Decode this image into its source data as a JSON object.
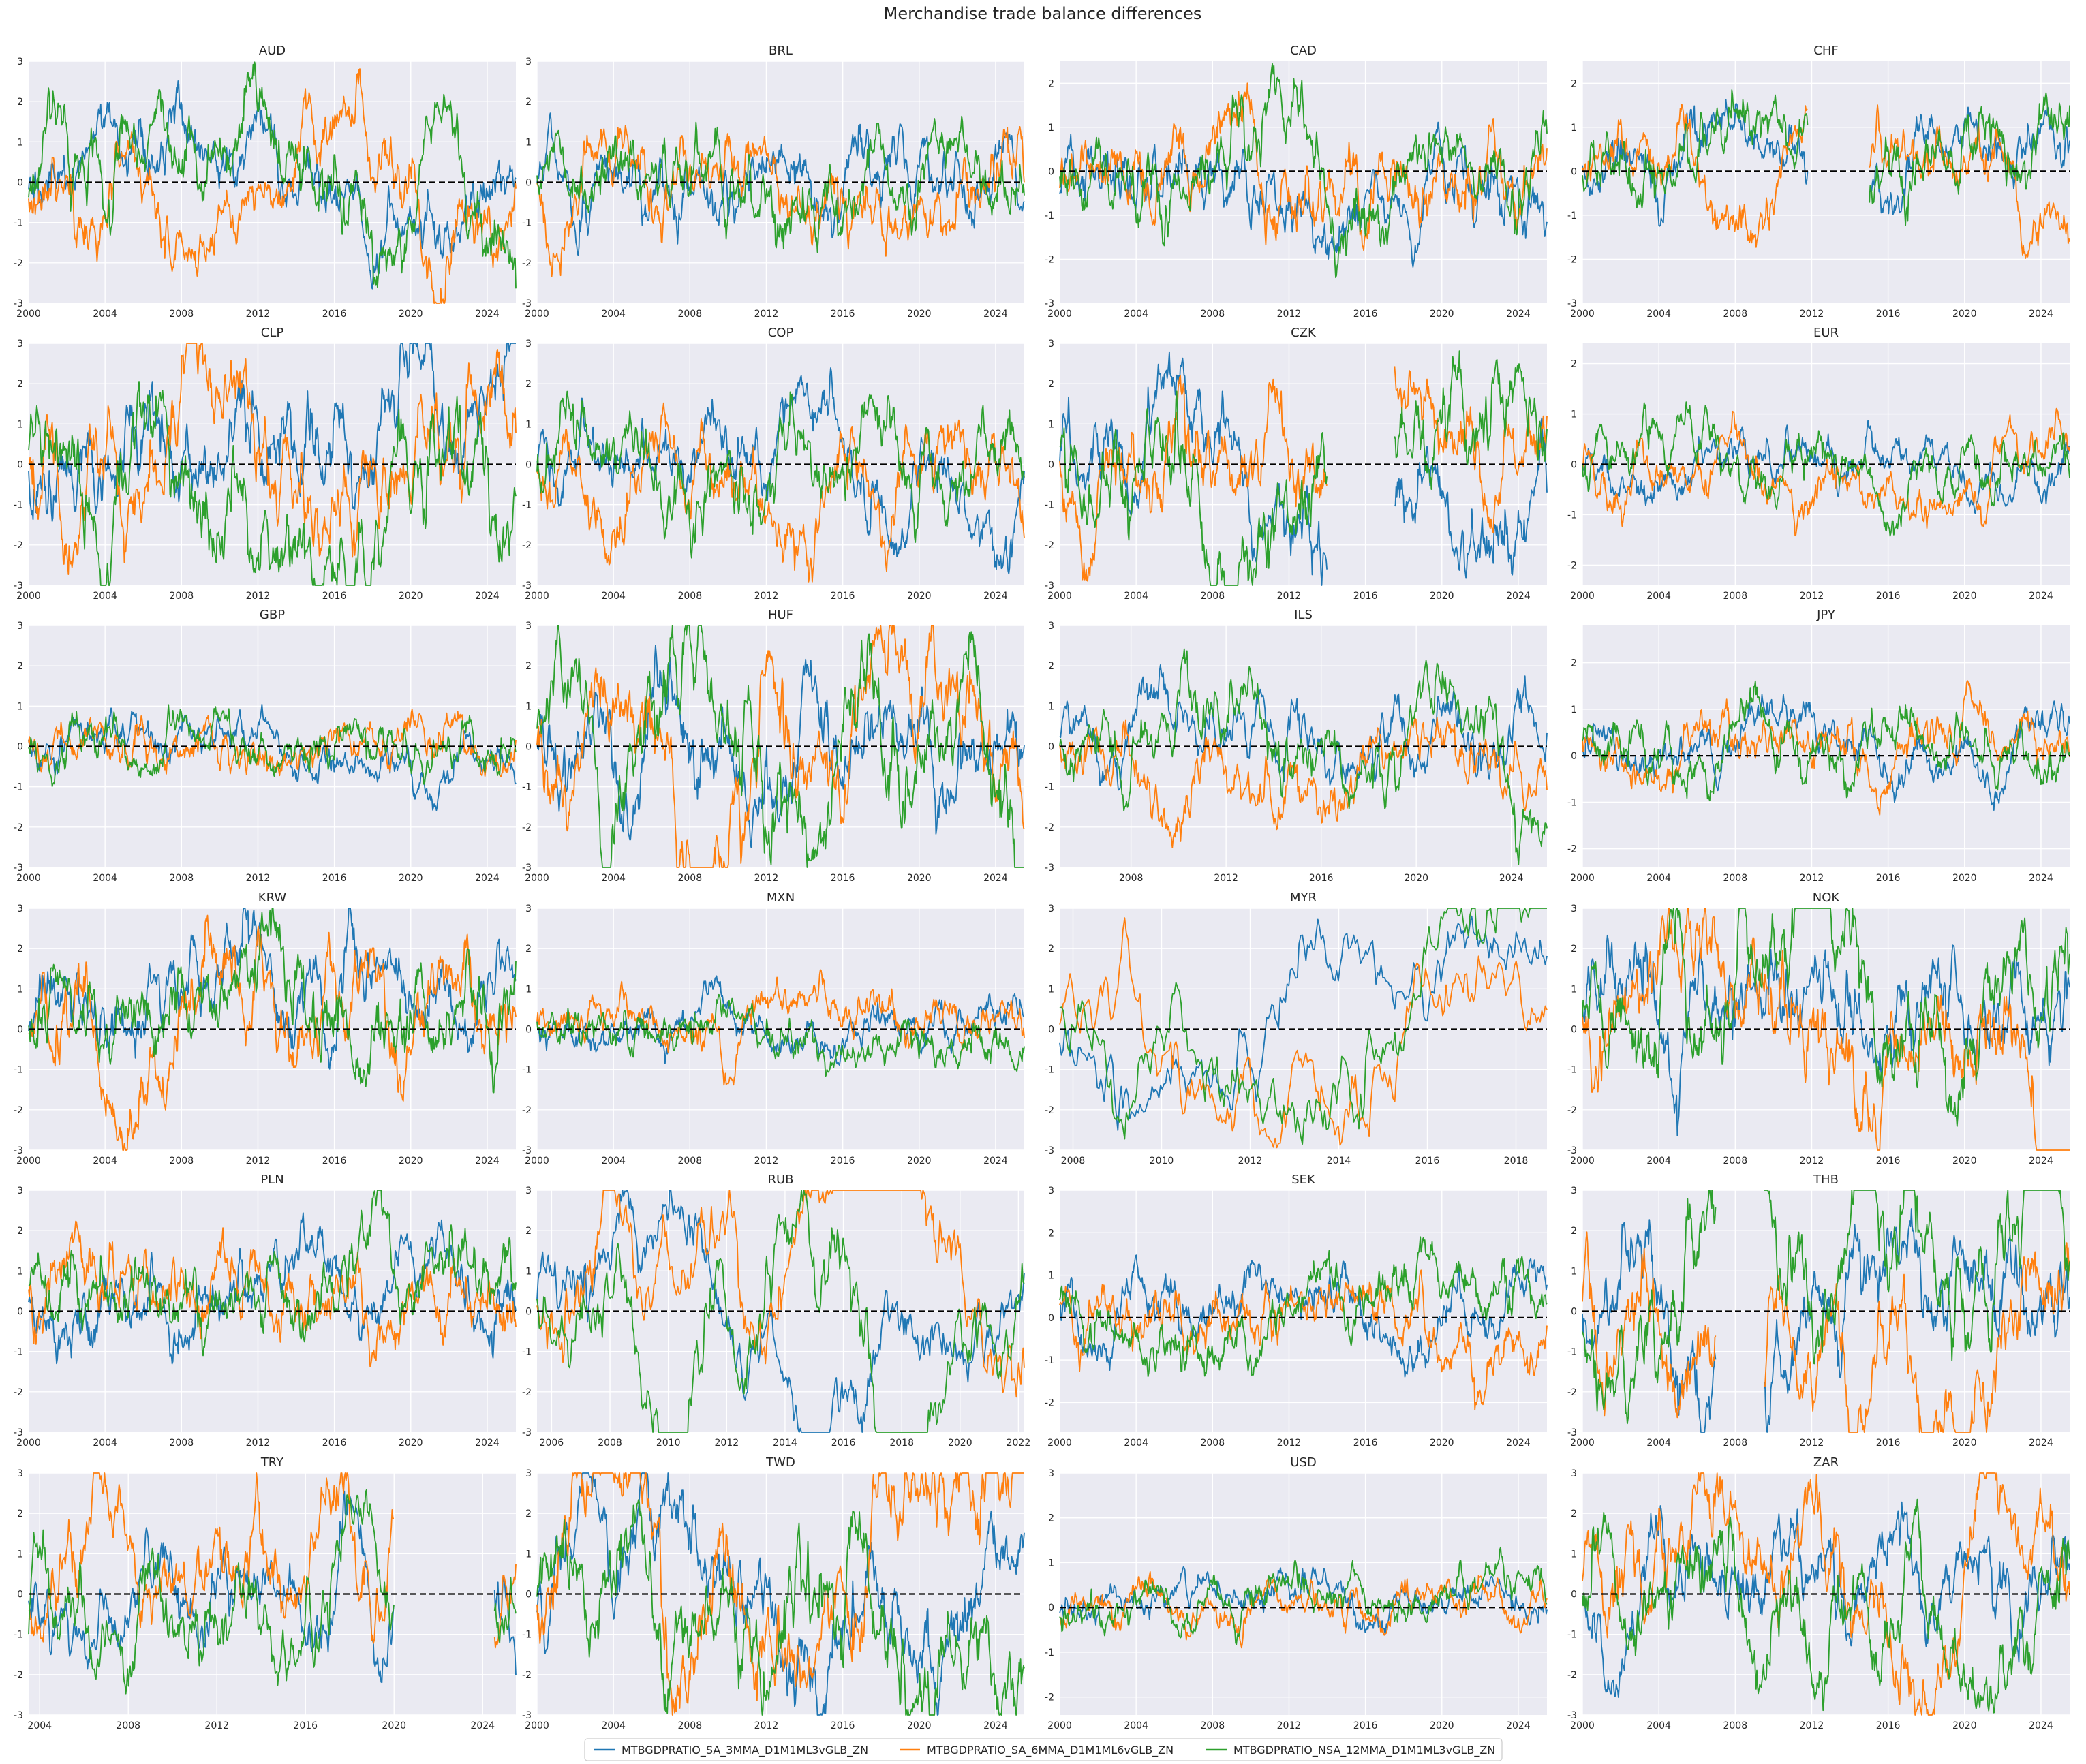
{
  "suptitle": "Merchandise trade balance differences",
  "colors": {
    "background": "#eaeaf2",
    "grid": "#ffffff",
    "zero_line": "#000000",
    "series": [
      "#1f77b4",
      "#ff7f0e",
      "#2ca02c"
    ]
  },
  "legend": {
    "placement": "bottom-center",
    "items": [
      "MTBGDPRATIO_SA_3MMA_D1M1ML3vGLB_ZN",
      "MTBGDPRATIO_SA_6MMA_D1M1ML6vGLB_ZN",
      "MTBGDPRATIO_NSA_12MMA_D1M1ML3vGLB_ZN"
    ]
  },
  "chart_data": [
    {
      "type": "line",
      "title": "AUD",
      "x_range": [
        2000,
        2025.5
      ],
      "xticks": [
        2000,
        2004,
        2008,
        2012,
        2016,
        2020,
        2024
      ],
      "ylim": [
        -3,
        3
      ],
      "yticks": [
        -3,
        -2,
        -1,
        0,
        1,
        2,
        3
      ],
      "zero_line": true,
      "style": {
        "vol": 0.75,
        "persist": 0.97
      },
      "gaps": []
    },
    {
      "type": "line",
      "title": "BRL",
      "x_range": [
        2000,
        2025.5
      ],
      "xticks": [
        2000,
        2004,
        2008,
        2012,
        2016,
        2020,
        2024
      ],
      "ylim": [
        -3,
        3
      ],
      "yticks": [
        -3,
        -2,
        -1,
        0,
        1,
        2,
        3
      ],
      "zero_line": true,
      "style": {
        "vol": 0.7,
        "persist": 0.96
      },
      "gaps": []
    },
    {
      "type": "line",
      "title": "CAD",
      "x_range": [
        2000,
        2025.5
      ],
      "xticks": [
        2000,
        2004,
        2008,
        2012,
        2016,
        2020,
        2024
      ],
      "ylim": [
        -3,
        2.5
      ],
      "yticks": [
        -3,
        -2,
        -1,
        0,
        1,
        2
      ],
      "zero_line": true,
      "style": {
        "vol": 0.7,
        "persist": 0.95
      },
      "gaps": []
    },
    {
      "type": "line",
      "title": "CHF",
      "x_range": [
        2000,
        2025.5
      ],
      "xticks": [
        2000,
        2004,
        2008,
        2012,
        2016,
        2020,
        2024
      ],
      "ylim": [
        -3,
        2.5
      ],
      "yticks": [
        -3,
        -2,
        -1,
        0,
        1,
        2
      ],
      "zero_line": true,
      "style": {
        "vol": 0.6,
        "persist": 0.94
      },
      "gaps": [
        [
          2011.8,
          2015.0
        ]
      ]
    },
    {
      "type": "line",
      "title": "CLP",
      "x_range": [
        2000,
        2025.5
      ],
      "xticks": [
        2000,
        2004,
        2008,
        2012,
        2016,
        2020,
        2024
      ],
      "ylim": [
        -3,
        3
      ],
      "yticks": [
        -3,
        -2,
        -1,
        0,
        1,
        2,
        3
      ],
      "zero_line": true,
      "style": {
        "vol": 1.0,
        "persist": 0.985
      },
      "gaps": []
    },
    {
      "type": "line",
      "title": "COP",
      "x_range": [
        2000,
        2025.5
      ],
      "xticks": [
        2000,
        2004,
        2008,
        2012,
        2016,
        2020,
        2024
      ],
      "ylim": [
        -3,
        3
      ],
      "yticks": [
        -3,
        -2,
        -1,
        0,
        1,
        2,
        3
      ],
      "zero_line": true,
      "style": {
        "vol": 0.75,
        "persist": 0.97
      },
      "gaps": []
    },
    {
      "type": "line",
      "title": "CZK",
      "x_range": [
        2000,
        2025.5
      ],
      "xticks": [
        2000,
        2004,
        2008,
        2012,
        2016,
        2020,
        2024
      ],
      "ylim": [
        -3,
        3
      ],
      "yticks": [
        -3,
        -2,
        -1,
        0,
        1,
        2,
        3
      ],
      "zero_line": true,
      "style": {
        "vol": 0.9,
        "persist": 0.97
      },
      "gaps": [
        [
          2014.0,
          2017.5
        ]
      ]
    },
    {
      "type": "line",
      "title": "EUR",
      "x_range": [
        2000,
        2025.5
      ],
      "xticks": [
        2000,
        2004,
        2008,
        2012,
        2016,
        2020,
        2024
      ],
      "ylim": [
        -2.4,
        2.4
      ],
      "yticks": [
        -2,
        -1,
        0,
        1,
        2
      ],
      "zero_line": true,
      "style": {
        "vol": 0.4,
        "persist": 0.93
      },
      "gaps": []
    },
    {
      "type": "line",
      "title": "GBP",
      "x_range": [
        2000,
        2025.5
      ],
      "xticks": [
        2000,
        2004,
        2008,
        2012,
        2016,
        2020,
        2024
      ],
      "ylim": [
        -3,
        3
      ],
      "yticks": [
        -3,
        -2,
        -1,
        0,
        1,
        2,
        3
      ],
      "zero_line": true,
      "style": {
        "vol": 0.45,
        "persist": 0.92
      },
      "gaps": []
    },
    {
      "type": "line",
      "title": "HUF",
      "x_range": [
        2000,
        2025.5
      ],
      "xticks": [
        2000,
        2004,
        2008,
        2012,
        2016,
        2020,
        2024
      ],
      "ylim": [
        -3,
        3
      ],
      "yticks": [
        -3,
        -2,
        -1,
        0,
        1,
        2,
        3
      ],
      "zero_line": true,
      "style": {
        "vol": 1.0,
        "persist": 0.98
      },
      "gaps": []
    },
    {
      "type": "line",
      "title": "ILS",
      "x_range": [
        2005,
        2025.5
      ],
      "xticks": [
        2008,
        2012,
        2016,
        2020,
        2024
      ],
      "ylim": [
        -3,
        3
      ],
      "yticks": [
        -3,
        -2,
        -1,
        0,
        1,
        2,
        3
      ],
      "zero_line": true,
      "style": {
        "vol": 0.75,
        "persist": 0.96
      },
      "gaps": []
    },
    {
      "type": "line",
      "title": "JPY",
      "x_range": [
        2000,
        2025.5
      ],
      "xticks": [
        2000,
        2004,
        2008,
        2012,
        2016,
        2020,
        2024
      ],
      "ylim": [
        -2.4,
        2.8
      ],
      "yticks": [
        -2,
        -1,
        0,
        1,
        2
      ],
      "zero_line": true,
      "style": {
        "vol": 0.45,
        "persist": 0.93
      },
      "gaps": []
    },
    {
      "type": "line",
      "title": "KRW",
      "x_range": [
        2000,
        2025.5
      ],
      "xticks": [
        2000,
        2004,
        2008,
        2012,
        2016,
        2020,
        2024
      ],
      "ylim": [
        -3,
        3
      ],
      "yticks": [
        -3,
        -2,
        -1,
        0,
        1,
        2,
        3
      ],
      "zero_line": true,
      "style": {
        "vol": 0.85,
        "persist": 0.97
      },
      "gaps": []
    },
    {
      "type": "line",
      "title": "MXN",
      "x_range": [
        2000,
        2025.5
      ],
      "xticks": [
        2000,
        2004,
        2008,
        2012,
        2016,
        2020,
        2024
      ],
      "ylim": [
        -3,
        3
      ],
      "yticks": [
        -3,
        -2,
        -1,
        0,
        1,
        2,
        3
      ],
      "zero_line": true,
      "style": {
        "vol": 0.45,
        "persist": 0.93
      },
      "gaps": []
    },
    {
      "type": "line",
      "title": "MYR",
      "x_range": [
        2007.7,
        2018.7
      ],
      "xticks": [
        2008,
        2010,
        2012,
        2014,
        2016,
        2018
      ],
      "ylim": [
        -3,
        3
      ],
      "yticks": [
        -3,
        -2,
        -1,
        0,
        1,
        2,
        3
      ],
      "zero_line": true,
      "style": {
        "vol": 1.0,
        "persist": 0.985
      },
      "gaps": []
    },
    {
      "type": "line",
      "title": "NOK",
      "x_range": [
        2000,
        2025.5
      ],
      "xticks": [
        2000,
        2004,
        2008,
        2012,
        2016,
        2020,
        2024
      ],
      "ylim": [
        -3,
        3
      ],
      "yticks": [
        -3,
        -2,
        -1,
        0,
        1,
        2,
        3
      ],
      "zero_line": true,
      "style": {
        "vol": 1.0,
        "persist": 0.985
      },
      "gaps": []
    },
    {
      "type": "line",
      "title": "PLN",
      "x_range": [
        2000,
        2025.5
      ],
      "xticks": [
        2000,
        2004,
        2008,
        2012,
        2016,
        2020,
        2024
      ],
      "ylim": [
        -3,
        3
      ],
      "yticks": [
        -3,
        -2,
        -1,
        0,
        1,
        2,
        3
      ],
      "zero_line": true,
      "style": {
        "vol": 0.7,
        "persist": 0.95
      },
      "gaps": []
    },
    {
      "type": "line",
      "title": "RUB",
      "x_range": [
        2005.5,
        2022.2
      ],
      "xticks": [
        2006,
        2008,
        2010,
        2012,
        2014,
        2016,
        2018,
        2020,
        2022
      ],
      "ylim": [
        -3,
        3
      ],
      "yticks": [
        -3,
        -2,
        -1,
        0,
        1,
        2,
        3
      ],
      "zero_line": true,
      "style": {
        "vol": 1.0,
        "persist": 0.985
      },
      "gaps": []
    },
    {
      "type": "line",
      "title": "SEK",
      "x_range": [
        2000,
        2025.5
      ],
      "xticks": [
        2000,
        2004,
        2008,
        2012,
        2016,
        2020,
        2024
      ],
      "ylim": [
        -2.7,
        3
      ],
      "yticks": [
        -2,
        -1,
        0,
        1,
        2,
        3
      ],
      "zero_line": true,
      "style": {
        "vol": 0.55,
        "persist": 0.93
      },
      "gaps": []
    },
    {
      "type": "line",
      "title": "THB",
      "x_range": [
        2000,
        2025.5
      ],
      "xticks": [
        2000,
        2004,
        2008,
        2012,
        2016,
        2020,
        2024
      ],
      "ylim": [
        -3,
        3
      ],
      "yticks": [
        -3,
        -2,
        -1,
        0,
        1,
        2,
        3
      ],
      "zero_line": true,
      "style": {
        "vol": 1.0,
        "persist": 0.985
      },
      "gaps": [
        [
          2007.0,
          2009.5
        ]
      ]
    },
    {
      "type": "line",
      "title": "TRY",
      "x_range": [
        2003.5,
        2025.5
      ],
      "xticks": [
        2004,
        2008,
        2012,
        2016,
        2020,
        2024
      ],
      "ylim": [
        -3,
        3
      ],
      "yticks": [
        -3,
        -2,
        -1,
        0,
        1,
        2,
        3
      ],
      "zero_line": true,
      "style": {
        "vol": 0.9,
        "persist": 0.97
      },
      "gaps": [
        [
          2020.0,
          2024.5
        ]
      ]
    },
    {
      "type": "line",
      "title": "TWD",
      "x_range": [
        2000,
        2025.5
      ],
      "xticks": [
        2000,
        2004,
        2008,
        2012,
        2016,
        2020,
        2024
      ],
      "ylim": [
        -3,
        3
      ],
      "yticks": [
        -3,
        -2,
        -1,
        0,
        1,
        2,
        3
      ],
      "zero_line": true,
      "style": {
        "vol": 1.0,
        "persist": 0.98
      },
      "gaps": []
    },
    {
      "type": "line",
      "title": "USD",
      "x_range": [
        2000,
        2025.5
      ],
      "xticks": [
        2000,
        2004,
        2008,
        2012,
        2016,
        2020,
        2024
      ],
      "ylim": [
        -2.4,
        3
      ],
      "yticks": [
        -2,
        -1,
        0,
        1,
        2,
        3
      ],
      "zero_line": true,
      "style": {
        "vol": 0.35,
        "persist": 0.93
      },
      "gaps": []
    },
    {
      "type": "line",
      "title": "ZAR",
      "x_range": [
        2000,
        2025.5
      ],
      "xticks": [
        2000,
        2004,
        2008,
        2012,
        2016,
        2020,
        2024
      ],
      "ylim": [
        -3,
        3
      ],
      "yticks": [
        -3,
        -2,
        -1,
        0,
        1,
        2,
        3
      ],
      "zero_line": true,
      "style": {
        "vol": 0.85,
        "persist": 0.97
      },
      "gaps": []
    }
  ]
}
